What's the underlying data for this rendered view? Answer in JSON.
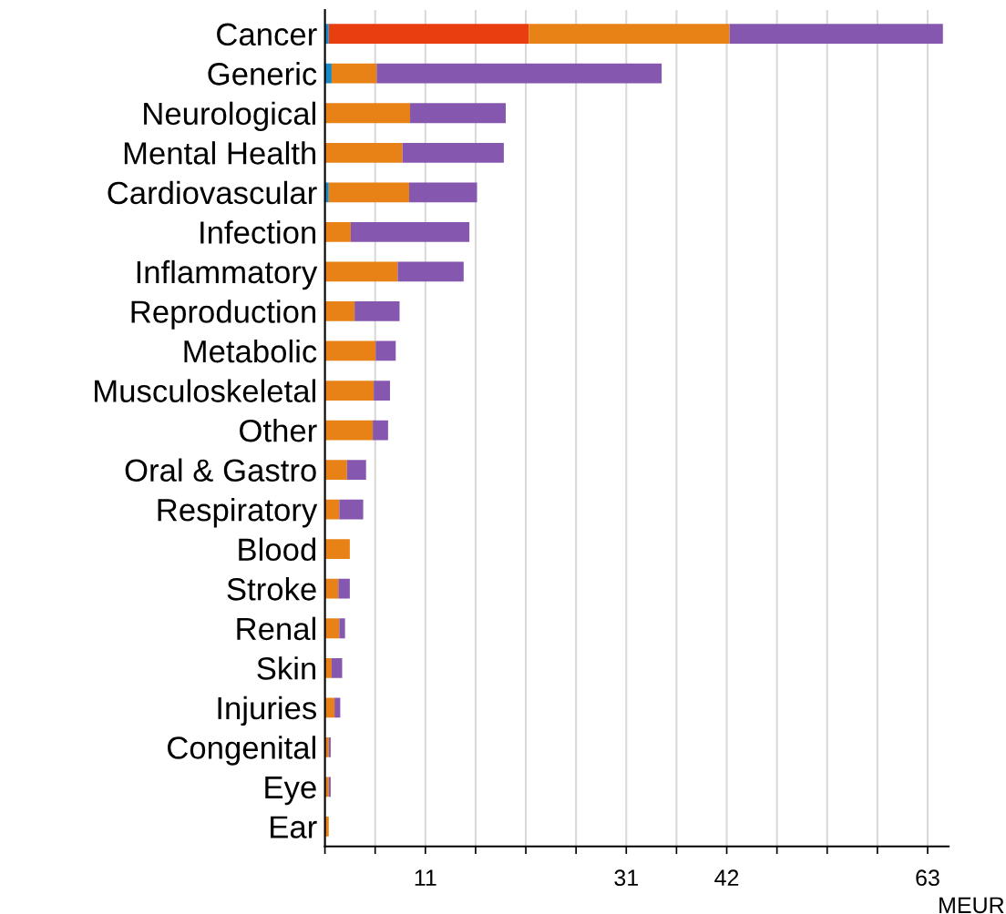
{
  "chart_data": {
    "type": "bar",
    "orientation": "horizontal",
    "stacked": true,
    "xlabel": "MEUR",
    "categories": [
      "Cancer",
      "Generic",
      "Neurological",
      "Mental Health",
      "Cardiovascular",
      "Infection",
      "Inflammatory",
      "Reproduction",
      "Metabolic",
      "Musculoskeletal",
      "Other",
      "Oral & Gastro",
      "Respiratory",
      "Blood",
      "Stroke",
      "Renal",
      "Skin",
      "Injuries",
      "Congenital",
      "Eye",
      "Ear"
    ],
    "series": [
      {
        "color": "#1a8ac6",
        "values": [
          0.4,
          0.7,
          null,
          null,
          0.4,
          null,
          null,
          null,
          null,
          null,
          null,
          null,
          null,
          null,
          null,
          null,
          null,
          null,
          null,
          null,
          null
        ]
      },
      {
        "color": "#e83e10",
        "values": [
          20.9,
          null,
          null,
          null,
          null,
          null,
          null,
          null,
          null,
          null,
          null,
          null,
          null,
          null,
          null,
          null,
          null,
          null,
          null,
          null,
          null
        ]
      },
      {
        "color": "#e88217",
        "values": [
          21.0,
          4.7,
          8.9,
          8.1,
          8.4,
          2.7,
          7.6,
          3.1,
          5.3,
          5.1,
          5.0,
          2.3,
          1.5,
          2.6,
          1.4,
          1.5,
          0.7,
          1.0,
          0.4,
          0.4,
          0.4
        ]
      },
      {
        "color": "#8557ae",
        "values": [
          22.3,
          29.8,
          10.0,
          10.6,
          7.1,
          12.4,
          6.9,
          4.7,
          2.1,
          1.7,
          1.6,
          2.0,
          2.5,
          null,
          1.2,
          0.6,
          1.1,
          0.6,
          0.2,
          0.2,
          null
        ]
      }
    ],
    "xlim": [
      0,
      65.2
    ],
    "xticks": [
      {
        "value": 0,
        "label": null
      },
      {
        "value": 5.25,
        "label": null
      },
      {
        "value": 10.5,
        "label": "11"
      },
      {
        "value": 15.75,
        "label": null
      },
      {
        "value": 21,
        "label": null
      },
      {
        "value": 26.25,
        "label": null
      },
      {
        "value": 31.5,
        "label": "31"
      },
      {
        "value": 36.75,
        "label": null
      },
      {
        "value": 42,
        "label": "42"
      },
      {
        "value": 47.25,
        "label": null
      },
      {
        "value": 52.5,
        "label": null
      },
      {
        "value": 57.75,
        "label": null
      },
      {
        "value": 63,
        "label": "63"
      }
    ],
    "grid": "x",
    "legend": false
  }
}
